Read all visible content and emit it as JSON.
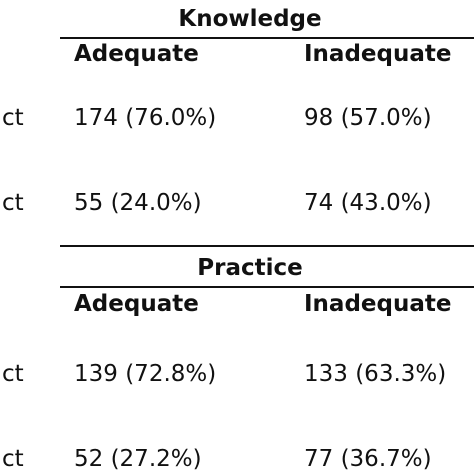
{
  "tables": [
    {
      "group_header": "Knowledge",
      "columns": [
        "Adequate",
        "Inadequate"
      ],
      "rows": [
        {
          "row_label": "ct",
          "cells": [
            "174 (76.0%)",
            "98 (57.0%)"
          ]
        },
        {
          "row_label": "ct",
          "cells": [
            "55 (24.0%)",
            "74 (43.0%)"
          ]
        }
      ]
    },
    {
      "group_header": "Practice",
      "columns": [
        "Adequate",
        "Inadequate"
      ],
      "rows": [
        {
          "row_label": "ct",
          "cells": [
            "139 (72.8%)",
            "133 (63.3%)"
          ]
        },
        {
          "row_label": "ct",
          "cells": [
            "52 (27.2%)",
            "77 (36.7%)"
          ]
        }
      ]
    }
  ]
}
